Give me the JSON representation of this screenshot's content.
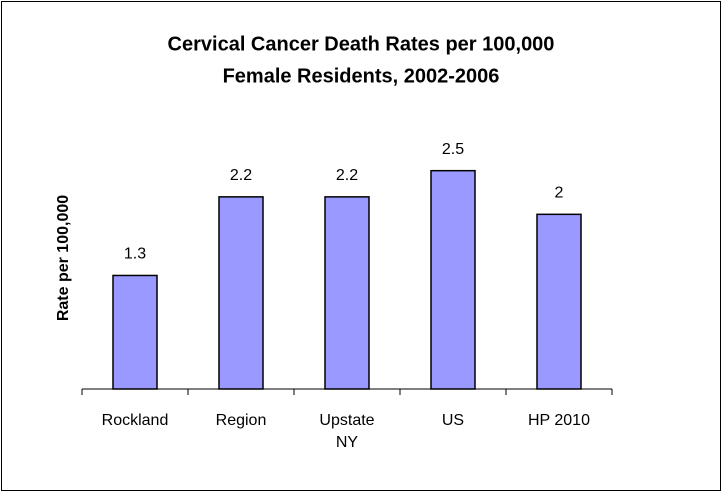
{
  "chart_data": {
    "type": "bar",
    "title": "Cervical Cancer Death Rates per 100,000",
    "subtitle": "Female Residents, 2002-2006",
    "y_label": "Rate per 100,000",
    "categories": [
      "Rockland",
      "Region",
      "Upstate NY",
      "US",
      "HP 2010"
    ],
    "values": [
      1.3,
      2.2,
      2.2,
      2.5,
      2
    ],
    "color": "#9999ff",
    "ylim": [
      0,
      3
    ],
    "grid": false
  }
}
